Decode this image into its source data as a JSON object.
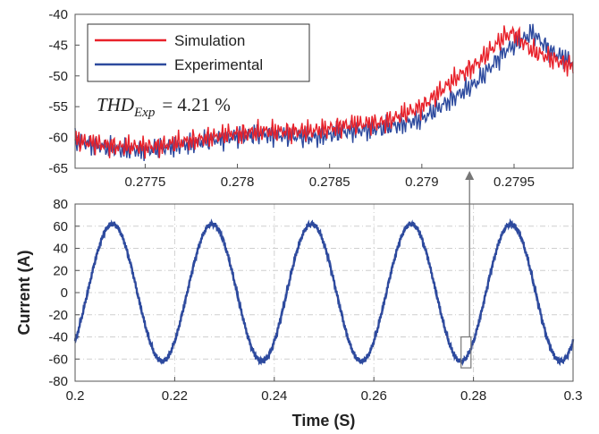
{
  "chart_data": [
    {
      "id": "zoom",
      "type": "line",
      "xlim": [
        0.27712,
        0.27982
      ],
      "ylim": [
        -65,
        -40
      ],
      "xticks": [
        0.2775,
        0.278,
        0.2785,
        0.279,
        0.2795
      ],
      "xtick_labels": [
        "0.2775",
        "0.278",
        "0.2785",
        "0.279",
        "0.2795"
      ],
      "yticks": [
        -40,
        -45,
        -50,
        -55,
        -60,
        -65
      ],
      "ytick_labels": [
        "-40",
        "-45",
        "-50",
        "-55",
        "-60",
        "-65"
      ],
      "grid": false,
      "legend": {
        "placement": "top-left",
        "entries": [
          "Simulation",
          "Experimental"
        ]
      },
      "annotation": {
        "base": "THD",
        "sub": "Exp",
        "rest": "= 4.21 %"
      },
      "series": [
        {
          "name": "Simulation",
          "color": "#e8212a",
          "x": [
            0.27712,
            0.27735,
            0.27755,
            0.27775,
            0.27795,
            0.27815,
            0.2784,
            0.2786,
            0.2788,
            0.279,
            0.2791,
            0.2792,
            0.2793,
            0.27945,
            0.2795,
            0.2796,
            0.27982
          ],
          "y": [
            -60.5,
            -61.5,
            -61.5,
            -60.5,
            -59.5,
            -59,
            -59,
            -58,
            -57.5,
            -55,
            -52.5,
            -50,
            -48,
            -43.5,
            -43,
            -46,
            -48.5
          ]
        },
        {
          "name": "Experimental",
          "color": "#2d4a9e",
          "x": [
            0.27712,
            0.27735,
            0.27755,
            0.27775,
            0.27795,
            0.27815,
            0.2784,
            0.2786,
            0.2788,
            0.279,
            0.2791,
            0.2792,
            0.2793,
            0.27945,
            0.2796,
            0.2797,
            0.27982
          ],
          "y": [
            -60.5,
            -62,
            -62,
            -61,
            -60,
            -59.5,
            -60,
            -59,
            -58.5,
            -57,
            -55,
            -53,
            -51,
            -46,
            -43,
            -46,
            -48
          ]
        }
      ]
    },
    {
      "id": "main",
      "type": "line",
      "xlabel": "Time (S)",
      "ylabel": "Current (A)",
      "xlim": [
        0.2,
        0.3
      ],
      "ylim": [
        -80,
        80
      ],
      "xticks": [
        0.2,
        0.22,
        0.24,
        0.26,
        0.28,
        0.3
      ],
      "xtick_labels": [
        "0.2",
        "0.22",
        "0.24",
        "0.26",
        "0.28",
        "0.3"
      ],
      "yticks": [
        80,
        60,
        40,
        20,
        0,
        -20,
        -40,
        -60,
        -80
      ],
      "ytick_labels": [
        "80",
        "60",
        "40",
        "20",
        "0",
        "-20",
        "-40",
        "-60",
        "-80"
      ],
      "grid": true,
      "series": [
        {
          "name": "Simulation",
          "color": "#e8212a",
          "waveform": "sine",
          "amplitude": 62,
          "frequency_hz": 50,
          "phase_deg": -45
        },
        {
          "name": "Experimental",
          "color": "#2d4a9e",
          "waveform": "sine",
          "amplitude": 62,
          "frequency_hz": 50,
          "phase_deg": -45
        }
      ],
      "zoom_box": {
        "xlim": [
          0.2775,
          0.2795
        ],
        "ylim": [
          -68,
          -40
        ]
      }
    }
  ]
}
